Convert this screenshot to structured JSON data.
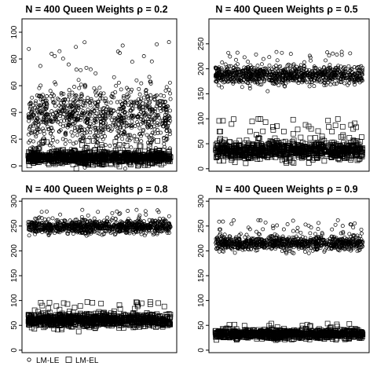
{
  "chart_data": [
    {
      "type": "scatter",
      "title": "N = 400  Queen  Weights  ρ = 0.2",
      "ylim": [
        -4,
        110
      ],
      "yticks": [
        0,
        20,
        40,
        60,
        80,
        100
      ],
      "x_range": [
        1,
        1000
      ],
      "grid": false,
      "series": [
        {
          "marker": "circle",
          "center": 36,
          "core_spread": 20,
          "outliers_max": 95
        },
        {
          "marker": "square",
          "center": 6,
          "core_spread": 4,
          "outliers_max": 20
        }
      ]
    },
    {
      "type": "scatter",
      "title": "N = 400  Queen  Weights  ρ = 0.5",
      "ylim": [
        -5,
        300
      ],
      "yticks": [
        0,
        50,
        100,
        150,
        200,
        250
      ],
      "x_range": [
        1,
        1000
      ],
      "grid": false,
      "series": [
        {
          "marker": "circle",
          "center": 187,
          "core_spread": 17,
          "outliers_max": 235
        },
        {
          "marker": "square",
          "center": 36,
          "core_spread": 16,
          "outliers_max": 100
        }
      ]
    },
    {
      "type": "scatter",
      "title": "N = 400  Queen  Weights  ρ = 0.8",
      "ylim": [
        -5,
        305
      ],
      "yticks": [
        0,
        50,
        100,
        150,
        200,
        250,
        300
      ],
      "x_range": [
        1,
        1000
      ],
      "grid": false,
      "series": [
        {
          "marker": "circle",
          "center": 248,
          "core_spread": 12,
          "outliers_max": 285
        },
        {
          "marker": "square",
          "center": 60,
          "core_spread": 12,
          "outliers_max": 98
        }
      ]
    },
    {
      "type": "scatter",
      "title": "N = 400  Queen  Weights  ρ = 0.9",
      "ylim": [
        -5,
        305
      ],
      "yticks": [
        0,
        50,
        100,
        150,
        200,
        250,
        300
      ],
      "x_range": [
        1,
        1000
      ],
      "grid": false,
      "series": [
        {
          "marker": "circle",
          "center": 215,
          "core_spread": 13,
          "outliers_max": 262
        },
        {
          "marker": "square",
          "center": 32,
          "core_spread": 8,
          "outliers_max": 55
        }
      ]
    }
  ],
  "legend": {
    "placement": "bottom-left",
    "items": [
      {
        "label": "LM-LE",
        "marker": "circle"
      },
      {
        "label": "LM-EL",
        "marker": "square"
      }
    ]
  }
}
